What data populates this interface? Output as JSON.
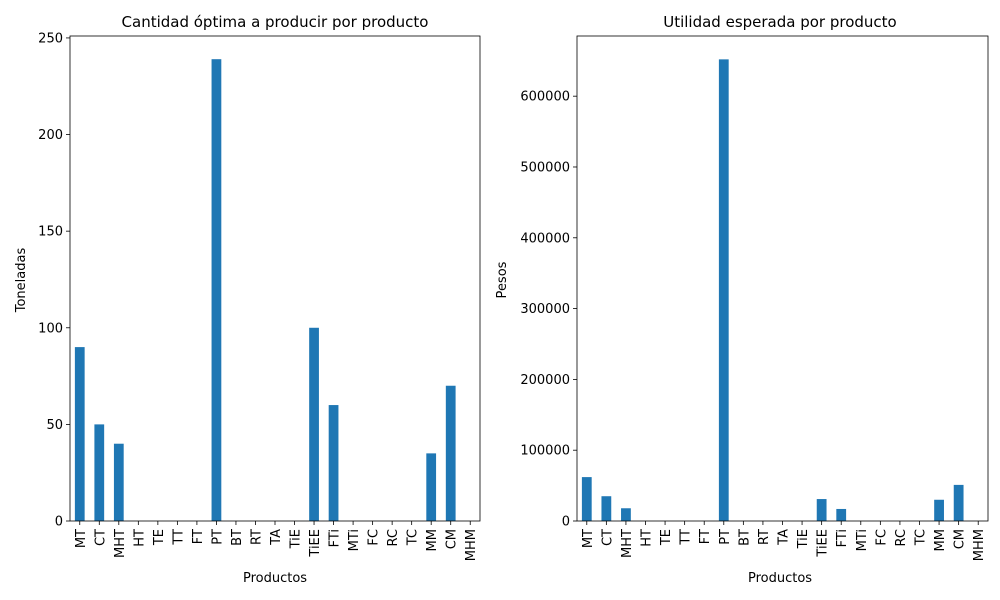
{
  "chart_data": [
    {
      "type": "bar",
      "title": "Cantidad óptima a producir por producto",
      "xlabel": "Productos",
      "ylabel": "Toneladas",
      "categories": [
        "MT",
        "CT",
        "MHT",
        "HT",
        "TE",
        "TT",
        "FT",
        "PT",
        "BT",
        "RT",
        "TA",
        "TiE",
        "TiEE",
        "FTi",
        "MTi",
        "FC",
        "RC",
        "TC",
        "MM",
        "CM",
        "MHM"
      ],
      "values": [
        90,
        50,
        40,
        0,
        0,
        0,
        0,
        239,
        0,
        0,
        0,
        0,
        100,
        60,
        0,
        0,
        0,
        0,
        35,
        70,
        0
      ],
      "ylim": [
        0,
        251
      ],
      "yticks": [
        0,
        50,
        100,
        150,
        200,
        250
      ],
      "grid": false,
      "color": "#1f77b4"
    },
    {
      "type": "bar",
      "title": "Utilidad esperada por producto",
      "xlabel": "Productos",
      "ylabel": "Pesos",
      "categories": [
        "MT",
        "CT",
        "MHT",
        "HT",
        "TE",
        "TT",
        "FT",
        "PT",
        "BT",
        "RT",
        "TA",
        "TiE",
        "TiEE",
        "FTi",
        "MTi",
        "FC",
        "RC",
        "TC",
        "MM",
        "CM",
        "MHM"
      ],
      "values": [
        62000,
        35000,
        18000,
        0,
        0,
        0,
        0,
        652000,
        0,
        0,
        0,
        0,
        31000,
        17000,
        0,
        0,
        0,
        0,
        30000,
        51000,
        0
      ],
      "ylim": [
        0,
        685000
      ],
      "yticks": [
        0,
        100000,
        200000,
        300000,
        400000,
        500000,
        600000
      ],
      "grid": false,
      "color": "#1f77b4"
    }
  ]
}
